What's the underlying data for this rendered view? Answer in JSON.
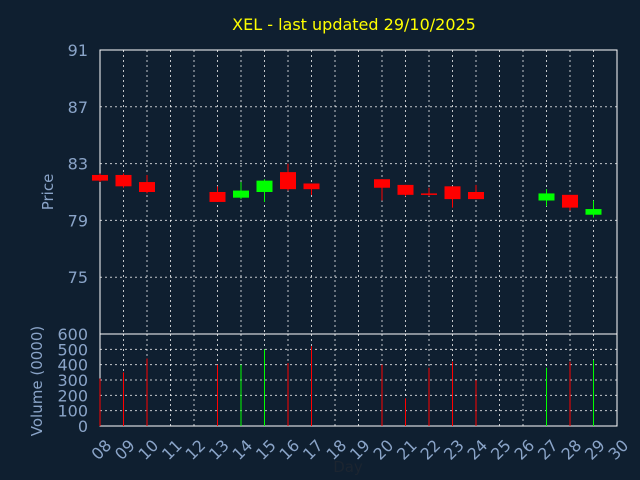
{
  "chart_data": {
    "type": "candlestick",
    "title": "XEL - last updated 29/10/2025",
    "xlabel": "Day",
    "ylabel_price": "Price",
    "ylabel_volume": "Volume (0000)",
    "x_ticks": [
      "08",
      "09",
      "10",
      "11",
      "12",
      "13",
      "14",
      "15",
      "16",
      "17",
      "18",
      "19",
      "20",
      "21",
      "22",
      "23",
      "24",
      "25",
      "26",
      "27",
      "28",
      "29",
      "30"
    ],
    "price_ticks": [
      75,
      79,
      83,
      87,
      91
    ],
    "price_range": [
      71,
      91
    ],
    "volume_ticks": [
      0,
      100,
      200,
      300,
      400,
      500,
      600
    ],
    "volume_range": [
      0,
      600
    ],
    "grid": true,
    "colors": {
      "up": "#00ff00",
      "down": "#ff0000",
      "title": "#ffff00",
      "axis_text": "#8aa4c8",
      "grid": "#ffffff",
      "background": "#0f1f30",
      "plot_border": "#ffffff"
    },
    "candles": [
      {
        "day": 8,
        "open": 82.2,
        "high": 82.3,
        "low": 81.7,
        "close": 81.8,
        "volume": 310
      },
      {
        "day": 9,
        "open": 82.2,
        "high": 82.3,
        "low": 81.3,
        "close": 81.4,
        "volume": 350
      },
      {
        "day": 10,
        "open": 81.7,
        "high": 82.2,
        "low": 80.9,
        "close": 81.0,
        "volume": 440
      },
      {
        "day": 13,
        "open": 81.0,
        "high": 81.4,
        "low": 80.3,
        "close": 80.3,
        "volume": 400
      },
      {
        "day": 14,
        "open": 80.6,
        "high": 81.7,
        "low": 80.5,
        "close": 81.1,
        "volume": 400
      },
      {
        "day": 15,
        "open": 81.0,
        "high": 81.9,
        "low": 80.3,
        "close": 81.8,
        "volume": 500
      },
      {
        "day": 16,
        "open": 82.4,
        "high": 83.0,
        "low": 81.1,
        "close": 81.2,
        "volume": 410
      },
      {
        "day": 17,
        "open": 81.6,
        "high": 81.6,
        "low": 80.8,
        "close": 81.2,
        "volume": 520
      },
      {
        "day": 20,
        "open": 81.9,
        "high": 81.9,
        "low": 80.4,
        "close": 81.3,
        "volume": 400
      },
      {
        "day": 21,
        "open": 81.5,
        "high": 81.5,
        "low": 80.7,
        "close": 80.8,
        "volume": 180
      },
      {
        "day": 22,
        "open": 80.9,
        "high": 81.3,
        "low": 80.7,
        "close": 80.8,
        "volume": 380
      },
      {
        "day": 23,
        "open": 81.4,
        "high": 81.4,
        "low": 79.9,
        "close": 80.5,
        "volume": 420
      },
      {
        "day": 24,
        "open": 81.0,
        "high": 81.5,
        "low": 80.5,
        "close": 80.5,
        "volume": 300
      },
      {
        "day": 27,
        "open": 80.4,
        "high": 81.2,
        "low": 80.0,
        "close": 80.9,
        "volume": 380
      },
      {
        "day": 28,
        "open": 80.8,
        "high": 80.8,
        "low": 79.7,
        "close": 79.9,
        "volume": 420
      },
      {
        "day": 29,
        "open": 79.4,
        "high": 80.4,
        "low": 79.2,
        "close": 79.8,
        "volume": 430
      }
    ]
  }
}
